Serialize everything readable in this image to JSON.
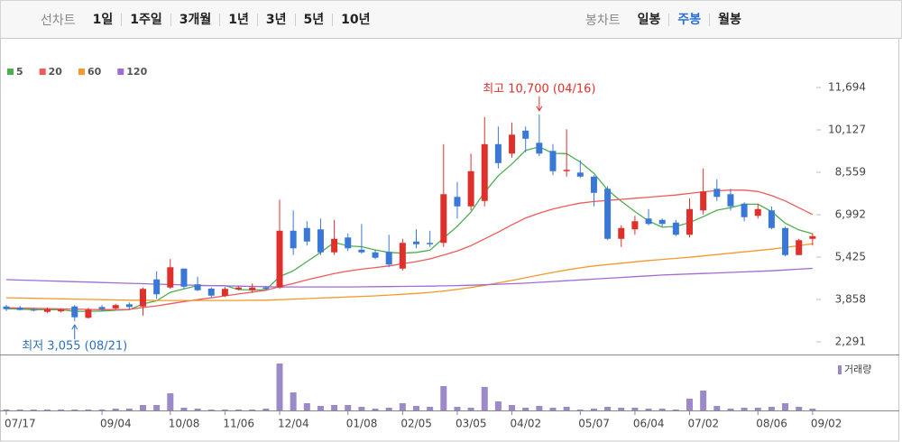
{
  "toolbar": {
    "left_label": "선차트",
    "periods": [
      "1일",
      "1주일",
      "3개월",
      "1년",
      "3년",
      "5년",
      "10년"
    ],
    "right_label": "봉차트",
    "candle_types": [
      "일봉",
      "주봉",
      "월봉"
    ],
    "selected_candle_type": 1
  },
  "chart_data": [
    {
      "type": "candlestick",
      "categories": [
        "07/17",
        null,
        null,
        null,
        null,
        null,
        null,
        "09/04",
        null,
        null,
        null,
        null,
        "10/08",
        null,
        null,
        null,
        "11/06",
        null,
        null,
        null,
        "12/04",
        null,
        null,
        null,
        null,
        "01/08",
        null,
        null,
        null,
        "02/05",
        null,
        null,
        null,
        "03/05",
        null,
        null,
        null,
        "04/02",
        null,
        null,
        null,
        null,
        "05/07",
        null,
        null,
        null,
        "06/04",
        null,
        null,
        null,
        "07/02",
        null,
        null,
        null,
        null,
        "08/06",
        null,
        null,
        null,
        "09/02"
      ],
      "ohlc": {
        "open": [
          3600,
          3560,
          3480,
          3400,
          3420,
          3600,
          3180,
          3580,
          3530,
          3680,
          3600,
          4600,
          4300,
          5000,
          4420,
          4260,
          3990,
          4230,
          4200,
          4300,
          4300,
          6400,
          6500,
          6450,
          5600,
          6150,
          5700,
          5600,
          5620,
          5000,
          6000,
          5950,
          5950,
          7650,
          7300,
          7500,
          9600,
          9250,
          10100,
          9650,
          9350,
          8600,
          8550,
          8400,
          7950,
          6100,
          6450,
          6850,
          6800,
          6700,
          6250,
          7150,
          7950,
          7750,
          7400,
          6950,
          7150,
          6500,
          5500,
          6100
        ],
        "high": [
          3660,
          3620,
          3540,
          3560,
          3520,
          3650,
          3550,
          3650,
          3700,
          3750,
          4300,
          4900,
          5350,
          5000,
          4700,
          4300,
          4320,
          4350,
          4450,
          4350,
          7550,
          7150,
          6750,
          6850,
          6800,
          6300,
          6650,
          5700,
          6250,
          6100,
          6450,
          6400,
          9600,
          8200,
          9250,
          10600,
          10250,
          10400,
          10250,
          10700,
          9600,
          10150,
          9000,
          8450,
          8050,
          6600,
          6950,
          7200,
          6850,
          6800,
          7600,
          8700,
          8300,
          7950,
          7450,
          7400,
          7300,
          6550,
          6100,
          6300
        ],
        "low": [
          3430,
          3450,
          3420,
          3350,
          3380,
          3055,
          3150,
          3420,
          3480,
          3500,
          3260,
          3880,
          4250,
          4250,
          4170,
          3930,
          3950,
          4200,
          4100,
          4200,
          4250,
          5500,
          5850,
          5500,
          5500,
          5650,
          5550,
          5350,
          5050,
          4930,
          5750,
          5800,
          5800,
          6850,
          7150,
          7300,
          8700,
          9100,
          9300,
          9150,
          8450,
          8400,
          8350,
          7300,
          6050,
          5800,
          6250,
          6600,
          6550,
          6200,
          6150,
          7000,
          7500,
          7150,
          6750,
          6850,
          6450,
          5450,
          5500,
          5850
        ],
        "close": [
          3500,
          3470,
          3450,
          3500,
          3480,
          3200,
          3480,
          3500,
          3650,
          3580,
          4250,
          4050,
          5050,
          4330,
          4200,
          4000,
          4250,
          4300,
          4300,
          4250,
          6400,
          5750,
          6000,
          5600,
          6100,
          5750,
          5600,
          5400,
          5150,
          5950,
          5900,
          5900,
          7750,
          7300,
          8600,
          9600,
          8900,
          9950,
          9800,
          9250,
          8600,
          8650,
          8400,
          7800,
          6100,
          6500,
          6750,
          6650,
          6650,
          6250,
          7200,
          7850,
          7650,
          7300,
          6900,
          7200,
          6500,
          5500,
          6050,
          6200
        ]
      },
      "up_color": "#e0302c",
      "down_color": "#3a78d8",
      "series": [
        {
          "name": "5",
          "color": "#4caf50",
          "values": [
            3520,
            3500,
            3480,
            3480,
            3480,
            3420,
            3420,
            3430,
            3460,
            3480,
            3690,
            3810,
            4120,
            4250,
            4370,
            4370,
            4370,
            4220,
            4210,
            4220,
            4700,
            4920,
            5260,
            5600,
            5970,
            5840,
            5810,
            5690,
            5600,
            5570,
            5600,
            5680,
            6130,
            6560,
            7090,
            7830,
            8430,
            8870,
            9370,
            9500,
            9260,
            9250,
            8940,
            8520,
            7910,
            7490,
            7110,
            6760,
            6530,
            6560,
            6700,
            6920,
            7160,
            7250,
            7380,
            7380,
            7110,
            6680,
            6430,
            6290
          ]
        },
        {
          "name": "20",
          "color": "#ef5a5a",
          "values": [
            3550,
            3540,
            3530,
            3520,
            3510,
            3500,
            3490,
            3480,
            3480,
            3490,
            3560,
            3620,
            3700,
            3780,
            3850,
            3920,
            3990,
            4060,
            4130,
            4200,
            4330,
            4450,
            4580,
            4700,
            4820,
            4910,
            4980,
            5040,
            5100,
            5180,
            5260,
            5360,
            5500,
            5650,
            5850,
            6100,
            6350,
            6620,
            6870,
            7050,
            7200,
            7320,
            7420,
            7480,
            7520,
            7560,
            7600,
            7640,
            7680,
            7720,
            7780,
            7840,
            7880,
            7900,
            7900,
            7850,
            7700,
            7500,
            7250,
            7000
          ]
        },
        {
          "name": "60",
          "color": "#f39a2c",
          "values": [
            3920,
            3910,
            3900,
            3890,
            3880,
            3870,
            3860,
            3850,
            3840,
            3830,
            3830,
            3820,
            3820,
            3820,
            3820,
            3820,
            3820,
            3820,
            3830,
            3830,
            3850,
            3870,
            3890,
            3910,
            3930,
            3950,
            3970,
            3990,
            4020,
            4050,
            4080,
            4120,
            4170,
            4230,
            4300,
            4380,
            4470,
            4560,
            4660,
            4760,
            4860,
            4950,
            5030,
            5100,
            5150,
            5200,
            5250,
            5300,
            5340,
            5380,
            5420,
            5470,
            5520,
            5570,
            5620,
            5670,
            5720,
            5780,
            5850,
            5920
          ]
        },
        {
          "name": "120",
          "color": "#a26bd6",
          "values": [
            4590,
            4575,
            4560,
            4545,
            4530,
            4515,
            4500,
            4485,
            4470,
            4455,
            4440,
            4425,
            4410,
            4395,
            4380,
            4370,
            4360,
            4350,
            4340,
            4330,
            4320,
            4320,
            4320,
            4320,
            4320,
            4320,
            4325,
            4330,
            4335,
            4340,
            4345,
            4350,
            4360,
            4370,
            4385,
            4400,
            4420,
            4440,
            4460,
            4490,
            4520,
            4550,
            4580,
            4610,
            4640,
            4670,
            4700,
            4730,
            4760,
            4780,
            4800,
            4820,
            4840,
            4860,
            4880,
            4900,
            4920,
            4950,
            4980,
            5010
          ]
        }
      ],
      "ylim": [
        1824,
        12761
      ],
      "yticks": [
        {
          "value": 2291,
          "label": "2,291"
        },
        {
          "value": 3858,
          "label": "3,858"
        },
        {
          "value": 5425,
          "label": "5,425"
        },
        {
          "value": 6992,
          "label": "6,992"
        },
        {
          "value": 8559,
          "label": "8,559"
        },
        {
          "value": 10127,
          "label": "10,127"
        },
        {
          "value": 11694,
          "label": "11,694"
        }
      ],
      "annotations": [
        {
          "text": "최고 10,700 (04/16)",
          "value": 10700,
          "of": "high",
          "color": "#e0302c"
        },
        {
          "text": "최저 3,055 (08/21)",
          "value": 3055,
          "of": "low",
          "color": "#2d6fb8"
        }
      ]
    },
    {
      "type": "bar",
      "name": "거래량",
      "color": "#9c89c8",
      "ylim": [
        0,
        60
      ],
      "values": [
        1,
        1,
        1,
        1,
        1,
        1,
        1,
        1,
        2,
        2,
        6,
        6,
        19,
        3,
        2,
        1,
        1,
        1,
        1,
        2,
        52,
        20,
        8,
        5,
        6,
        6,
        4,
        2,
        3,
        8,
        5,
        4,
        27,
        4,
        3,
        26,
        10,
        6,
        3,
        5,
        3,
        4,
        1,
        2,
        4,
        3,
        3,
        2,
        2,
        1,
        13,
        22,
        5,
        2,
        3,
        3,
        4,
        8,
        4,
        2
      ]
    }
  ]
}
